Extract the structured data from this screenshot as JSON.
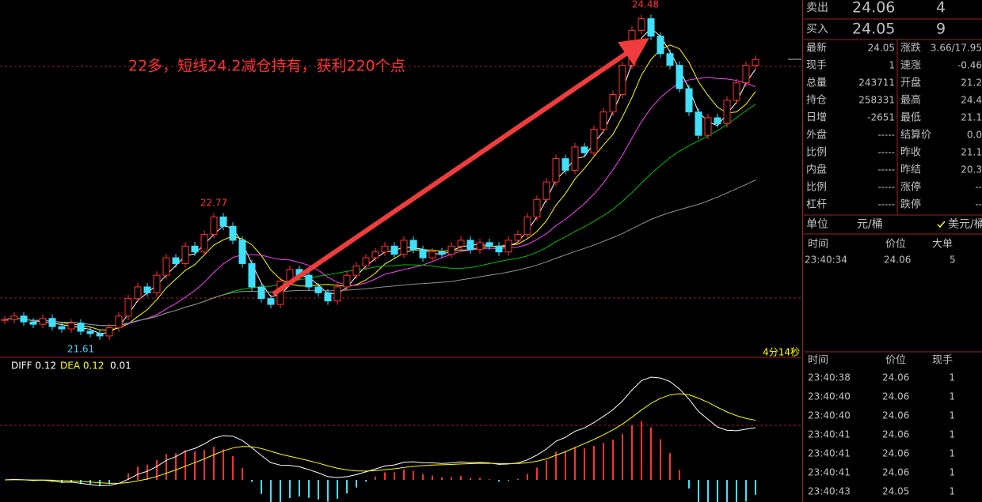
{
  "price_chart": {
    "high_label": "24.48",
    "mid_label": "22.77",
    "low_label": "21.61",
    "annotation": "22多，短线24.2减仓持有，获利220个点",
    "timer": "4分14秒",
    "ylim": [
      21.51,
      24.56
    ],
    "closes": [
      21.82,
      21.85,
      21.8,
      21.78,
      21.83,
      21.76,
      21.74,
      21.79,
      21.72,
      21.7,
      21.68,
      21.75,
      21.85,
      22.0,
      22.1,
      22.05,
      22.2,
      22.35,
      22.3,
      22.45,
      22.4,
      22.55,
      22.7,
      22.62,
      22.5,
      22.3,
      22.1,
      22.0,
      21.95,
      22.15,
      22.25,
      22.2,
      22.1,
      22.05,
      21.98,
      22.1,
      22.2,
      22.28,
      22.35,
      22.4,
      22.45,
      22.38,
      22.5,
      22.42,
      22.35,
      22.4,
      22.38,
      22.45,
      22.5,
      22.42,
      22.48,
      22.45,
      22.4,
      22.5,
      22.55,
      22.7,
      22.85,
      23.0,
      23.2,
      23.1,
      23.3,
      23.25,
      23.45,
      23.6,
      23.75,
      24.0,
      24.3,
      24.4,
      24.25,
      24.1,
      24.0,
      23.8,
      23.6,
      23.4,
      23.55,
      23.5,
      23.7,
      23.85,
      24.0,
      24.05
    ]
  },
  "macd": {
    "diff": "DIFF 0.12",
    "dea": "DEA 0.12",
    "macd": "0.01"
  },
  "quote": {
    "sell": {
      "label": "卖出",
      "price": "24.06",
      "volume": "4"
    },
    "buy": {
      "label": "买入",
      "price": "24.05",
      "volume": "9"
    }
  },
  "stats": [
    {
      "l": "最新",
      "lv": "24.05",
      "lc": "#ff3232",
      "r": "涨跌",
      "rv": "3.66/17.95",
      "rc": "#ff3232"
    },
    {
      "l": "现手",
      "lv": "1",
      "lc": "#ffff00",
      "r": "速涨",
      "rv": "-0.46",
      "rc": "#00e000"
    },
    {
      "l": "总量",
      "lv": "243711",
      "lc": "#ffff00",
      "r": "开盘",
      "rv": "21.2",
      "rc": "#ff3232"
    },
    {
      "l": "持仓",
      "lv": "258331",
      "lc": "#ffff00",
      "r": "最高",
      "rv": "24.4",
      "rc": "#ff3232"
    },
    {
      "l": "日增",
      "lv": "-2651",
      "lc": "#ffff00",
      "r": "最低",
      "rv": "21.1",
      "rc": "#ff3232"
    },
    {
      "l": "外盘",
      "lv": "-----",
      "lc": "#c0c0c0",
      "r": "结算价",
      "rv": "0.0",
      "rc": "#ffffff"
    },
    {
      "l": "比例",
      "lv": "-----",
      "lc": "#c0c0c0",
      "r": "昨收",
      "rv": "21.1",
      "rc": "#ffffff"
    },
    {
      "l": "内盘",
      "lv": "-----",
      "lc": "#c0c0c0",
      "r": "昨结",
      "rv": "20.3",
      "rc": "#ffffff"
    },
    {
      "l": "比例",
      "lv": "-----",
      "lc": "#c0c0c0",
      "r": "涨停",
      "rv": "--",
      "rc": "#ff3232"
    },
    {
      "l": "杠杆",
      "lv": "-----",
      "lc": "#c0c0c0",
      "r": "跌停",
      "rv": "--",
      "rc": "#00e000"
    }
  ],
  "unit": {
    "label": "单位",
    "cny": "元/桶",
    "usd": "美元/桶"
  },
  "big_orders": {
    "headers": [
      "时间",
      "价位",
      "大单"
    ],
    "rows": [
      {
        "time": "23:40:34",
        "price": "24.06",
        "volume": "5"
      }
    ]
  },
  "ticks": {
    "headers": [
      "时间",
      "价位",
      "现手"
    ],
    "rows": [
      {
        "time": "23:40:38",
        "price": "24.06",
        "volume": "1",
        "color": "#ff3232"
      },
      {
        "time": "23:40:40",
        "price": "24.06",
        "volume": "1",
        "color": "#00e000"
      },
      {
        "time": "23:40:40",
        "price": "24.06",
        "volume": "1",
        "color": "#00e000"
      },
      {
        "time": "23:40:41",
        "price": "24.06",
        "volume": "1",
        "color": "#00e000"
      },
      {
        "time": "23:40:41",
        "price": "24.06",
        "volume": "1",
        "color": "#ff3232"
      },
      {
        "time": "23:40:41",
        "price": "24.06",
        "volume": "1",
        "color": "#ff3232"
      },
      {
        "time": "23:40:43",
        "price": "24.05",
        "volume": "1",
        "color": "#00e000"
      }
    ]
  }
}
